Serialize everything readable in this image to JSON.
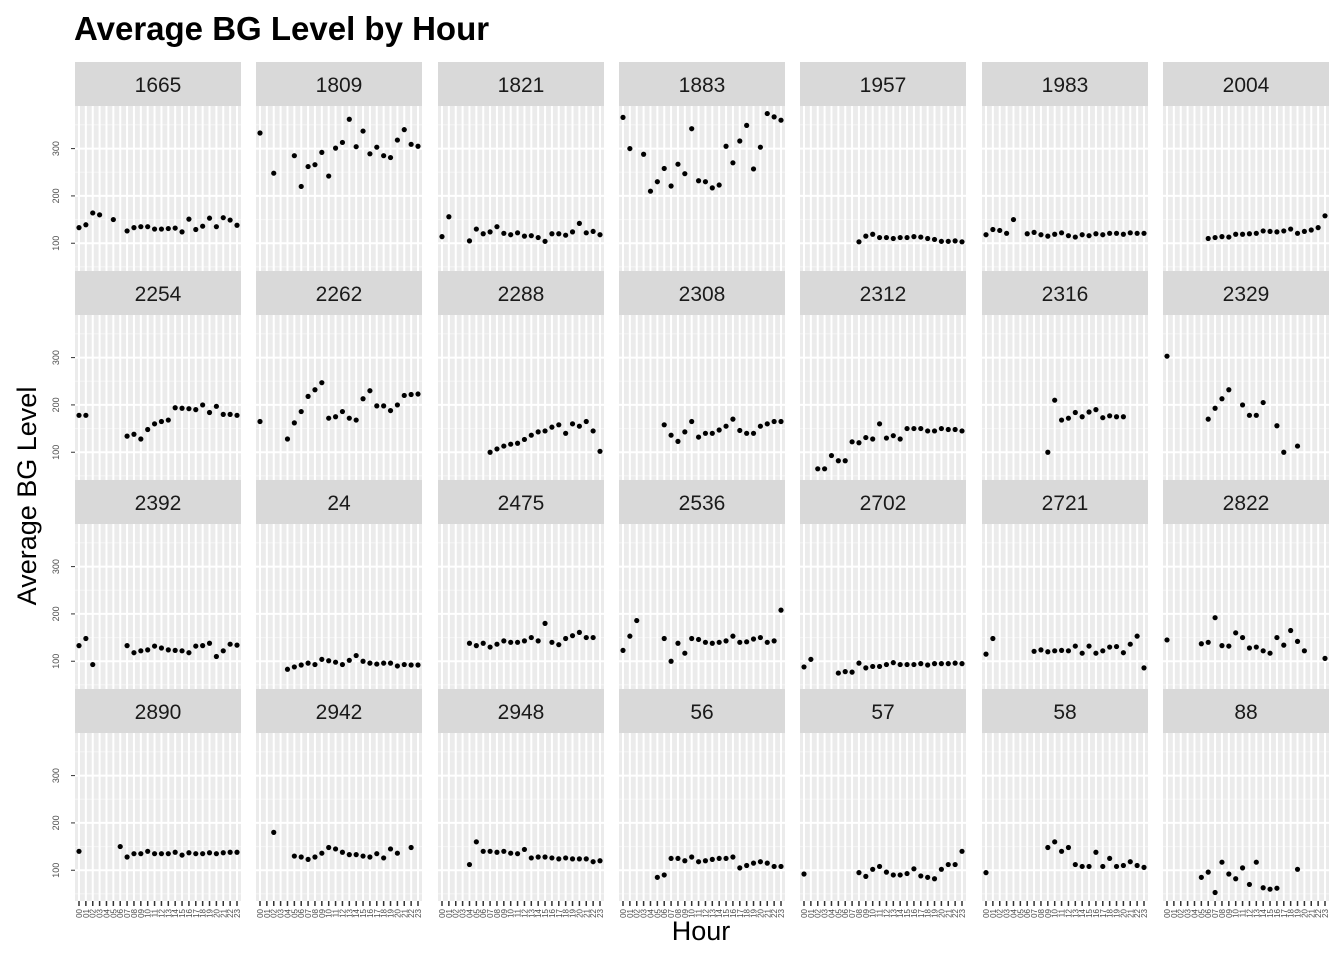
{
  "chart_data": {
    "type": "scatter",
    "title": "Average BG Level by Hour",
    "xlabel": "Hour",
    "ylabel": "Average BG Level",
    "x_categories": [
      "00",
      "01",
      "02",
      "03",
      "04",
      "05",
      "06",
      "07",
      "08",
      "09",
      "10",
      "11",
      "12",
      "13",
      "14",
      "15",
      "16",
      "17",
      "18",
      "19",
      "20",
      "21",
      "22",
      "23"
    ],
    "y_ticks": [
      100,
      200,
      300
    ],
    "y_range": [
      35,
      390
    ],
    "grid": true,
    "layout": "facet_wrap 7 columns x 4 rows, shared axes",
    "panels": [
      {
        "label": "1665",
        "x": [
          0,
          1,
          2,
          3,
          5,
          7,
          8,
          9,
          10,
          11,
          12,
          13,
          14,
          15,
          16,
          17,
          18,
          19,
          20,
          21,
          22,
          23
        ],
        "y": [
          133,
          139,
          164,
          160,
          150,
          126,
          133,
          135,
          135,
          130,
          130,
          131,
          132,
          124,
          151,
          129,
          136,
          153,
          135,
          154,
          149,
          138
        ]
      },
      {
        "label": "1809",
        "x": [
          0,
          2,
          5,
          6,
          7,
          8,
          9,
          10,
          11,
          12,
          13,
          14,
          15,
          16,
          17,
          18,
          19,
          20,
          21,
          22,
          23
        ],
        "y": [
          333,
          248,
          285,
          220,
          262,
          266,
          292,
          242,
          301,
          313,
          362,
          304,
          337,
          289,
          303,
          285,
          281,
          318,
          340,
          309,
          305
        ]
      },
      {
        "label": "1821",
        "x": [
          0,
          1,
          4,
          5,
          6,
          7,
          8,
          9,
          10,
          11,
          12,
          13,
          14,
          15,
          16,
          17,
          18,
          19,
          20,
          21,
          22,
          23
        ],
        "y": [
          114,
          156,
          105,
          130,
          120,
          124,
          135,
          121,
          118,
          122,
          115,
          116,
          112,
          104,
          120,
          120,
          117,
          124,
          142,
          122,
          125,
          118
        ]
      },
      {
        "label": "1883",
        "x": [
          0,
          1,
          3,
          4,
          5,
          6,
          7,
          8,
          9,
          10,
          11,
          12,
          13,
          14,
          15,
          16,
          17,
          18,
          19,
          20,
          21,
          22,
          23
        ],
        "y": [
          366,
          300,
          288,
          210,
          230,
          258,
          221,
          267,
          247,
          342,
          232,
          230,
          217,
          223,
          305,
          270,
          316,
          349,
          257,
          303,
          374,
          367,
          360
        ]
      },
      {
        "label": "1957",
        "x": [
          8,
          9,
          10,
          11,
          12,
          13,
          14,
          15,
          16,
          17,
          18,
          19,
          20,
          21,
          22,
          23
        ],
        "y": [
          103,
          115,
          119,
          112,
          112,
          110,
          112,
          112,
          114,
          113,
          110,
          108,
          104,
          104,
          105,
          103
        ]
      },
      {
        "label": "1983",
        "x": [
          0,
          1,
          2,
          3,
          4,
          6,
          7,
          8,
          9,
          10,
          11,
          12,
          13,
          14,
          15,
          16,
          17,
          18,
          19,
          20,
          21,
          22,
          23
        ],
        "y": [
          118,
          129,
          127,
          121,
          150,
          120,
          123,
          118,
          115,
          119,
          122,
          116,
          113,
          118,
          116,
          120,
          118,
          121,
          121,
          119,
          122,
          121,
          121
        ]
      },
      {
        "label": "2004",
        "x": [
          6,
          7,
          8,
          9,
          10,
          11,
          12,
          13,
          14,
          15,
          16,
          17,
          18,
          19,
          20,
          21,
          22,
          23
        ],
        "y": [
          110,
          112,
          114,
          113,
          119,
          119,
          120,
          121,
          126,
          125,
          124,
          126,
          130,
          121,
          125,
          128,
          133,
          158
        ]
      },
      {
        "label": "2254",
        "x": [
          0,
          1,
          7,
          8,
          9,
          10,
          11,
          12,
          13,
          14,
          15,
          16,
          17,
          18,
          19,
          20,
          21,
          22,
          23
        ],
        "y": [
          178,
          178,
          134,
          138,
          128,
          148,
          160,
          165,
          168,
          194,
          193,
          192,
          190,
          200,
          184,
          197,
          180,
          180,
          178
        ]
      },
      {
        "label": "2262",
        "x": [
          0,
          4,
          5,
          6,
          7,
          8,
          9,
          10,
          11,
          12,
          13,
          14,
          15,
          16,
          17,
          18,
          19,
          20,
          21,
          22,
          23
        ],
        "y": [
          165,
          128,
          162,
          186,
          218,
          232,
          247,
          172,
          175,
          186,
          172,
          168,
          213,
          230,
          198,
          198,
          188,
          200,
          220,
          222,
          223
        ]
      },
      {
        "label": "2288",
        "x": [
          7,
          8,
          9,
          10,
          11,
          12,
          13,
          14,
          15,
          16,
          17,
          18,
          19,
          20,
          21,
          22,
          23
        ],
        "y": [
          100,
          107,
          113,
          117,
          119,
          127,
          136,
          143,
          145,
          153,
          158,
          140,
          160,
          155,
          165,
          145,
          102
        ]
      },
      {
        "label": "2308",
        "x": [
          6,
          7,
          8,
          9,
          10,
          11,
          12,
          13,
          14,
          15,
          16,
          17,
          18,
          19,
          20,
          21,
          22,
          23
        ],
        "y": [
          158,
          136,
          123,
          143,
          165,
          132,
          140,
          140,
          147,
          155,
          170,
          146,
          140,
          140,
          155,
          160,
          165,
          165
        ]
      },
      {
        "label": "2312",
        "x": [
          2,
          3,
          4,
          5,
          6,
          7,
          8,
          9,
          10,
          11,
          12,
          13,
          14,
          15,
          16,
          17,
          18,
          19,
          20,
          21,
          22,
          23
        ],
        "y": [
          65,
          65,
          93,
          82,
          82,
          122,
          120,
          131,
          128,
          160,
          130,
          135,
          128,
          150,
          150,
          150,
          145,
          145,
          150,
          148,
          148,
          145
        ]
      },
      {
        "label": "2316",
        "x": [
          9,
          10,
          11,
          12,
          13,
          14,
          15,
          16,
          17,
          18,
          19,
          20
        ],
        "y": [
          100,
          210,
          168,
          172,
          184,
          175,
          185,
          190,
          173,
          177,
          175,
          175
        ]
      },
      {
        "label": "2329",
        "x": [
          0,
          6,
          7,
          8,
          9,
          11,
          12,
          13,
          14,
          16,
          17,
          19
        ],
        "y": [
          303,
          170,
          193,
          213,
          232,
          200,
          178,
          178,
          205,
          156,
          100,
          113
        ]
      },
      {
        "label": "2392",
        "x": [
          0,
          1,
          2,
          7,
          8,
          9,
          10,
          11,
          12,
          13,
          14,
          15,
          16,
          17,
          18,
          19,
          20,
          21,
          22,
          23
        ],
        "y": [
          133,
          148,
          93,
          133,
          118,
          122,
          124,
          132,
          128,
          124,
          123,
          122,
          118,
          132,
          133,
          138,
          110,
          122,
          136,
          134
        ]
      },
      {
        "label": "24",
        "x": [
          4,
          5,
          6,
          7,
          8,
          9,
          10,
          11,
          12,
          13,
          14,
          15,
          16,
          17,
          18,
          19,
          20,
          21,
          22,
          23
        ],
        "y": [
          83,
          88,
          92,
          96,
          93,
          104,
          101,
          98,
          93,
          102,
          112,
          100,
          96,
          94,
          96,
          96,
          90,
          93,
          92,
          92
        ]
      },
      {
        "label": "2475",
        "x": [
          4,
          5,
          6,
          7,
          8,
          9,
          10,
          11,
          12,
          13,
          14,
          15,
          16,
          17,
          18,
          19,
          20,
          21,
          22
        ],
        "y": [
          138,
          133,
          138,
          130,
          136,
          143,
          140,
          140,
          143,
          150,
          143,
          180,
          140,
          135,
          148,
          154,
          161,
          150,
          150
        ]
      },
      {
        "label": "2536",
        "x": [
          0,
          1,
          2,
          6,
          7,
          8,
          9,
          10,
          11,
          12,
          13,
          14,
          15,
          16,
          17,
          18,
          19,
          20,
          21,
          22,
          23
        ],
        "y": [
          123,
          153,
          186,
          148,
          100,
          138,
          117,
          148,
          146,
          140,
          138,
          140,
          143,
          153,
          140,
          141,
          147,
          150,
          140,
          143,
          208
        ]
      },
      {
        "label": "2702",
        "x": [
          0,
          1,
          5,
          6,
          7,
          8,
          9,
          10,
          11,
          12,
          13,
          14,
          15,
          16,
          17,
          18,
          19,
          20,
          21,
          22,
          23
        ],
        "y": [
          88,
          104,
          75,
          78,
          77,
          96,
          86,
          89,
          89,
          93,
          97,
          93,
          93,
          93,
          95,
          92,
          95,
          95,
          95,
          96,
          95
        ]
      },
      {
        "label": "2721",
        "x": [
          0,
          1,
          7,
          8,
          9,
          10,
          11,
          12,
          13,
          14,
          15,
          16,
          17,
          18,
          19,
          20,
          21,
          22,
          23
        ],
        "y": [
          115,
          148,
          121,
          124,
          120,
          122,
          123,
          122,
          132,
          117,
          132,
          117,
          122,
          130,
          131,
          118,
          136,
          153,
          86
        ]
      },
      {
        "label": "2822",
        "x": [
          0,
          5,
          6,
          7,
          8,
          9,
          10,
          11,
          12,
          13,
          14,
          15,
          16,
          17,
          18,
          19,
          20,
          23
        ],
        "y": [
          145,
          137,
          140,
          192,
          133,
          132,
          160,
          150,
          128,
          130,
          122,
          117,
          150,
          134,
          165,
          142,
          122,
          106
        ]
      },
      {
        "label": "2890",
        "x": [
          0,
          6,
          7,
          8,
          9,
          10,
          11,
          12,
          13,
          14,
          15,
          16,
          17,
          18,
          19,
          20,
          21,
          22,
          23
        ],
        "y": [
          140,
          150,
          128,
          135,
          135,
          140,
          135,
          135,
          135,
          138,
          132,
          137,
          135,
          135,
          137,
          135,
          137,
          138,
          138
        ]
      },
      {
        "label": "2942",
        "x": [
          2,
          5,
          6,
          7,
          8,
          9,
          10,
          11,
          12,
          13,
          14,
          15,
          16,
          17,
          18,
          19,
          20,
          22
        ],
        "y": [
          180,
          130,
          128,
          123,
          128,
          136,
          148,
          145,
          138,
          133,
          133,
          130,
          128,
          135,
          126,
          145,
          136,
          148
        ]
      },
      {
        "label": "2948",
        "x": [
          4,
          5,
          6,
          7,
          8,
          9,
          10,
          11,
          12,
          13,
          14,
          15,
          16,
          17,
          18,
          19,
          20,
          21,
          22,
          23
        ],
        "y": [
          112,
          160,
          140,
          140,
          138,
          140,
          136,
          135,
          144,
          126,
          128,
          128,
          126,
          124,
          126,
          124,
          124,
          124,
          118,
          120
        ]
      },
      {
        "label": "56",
        "x": [
          5,
          6,
          7,
          8,
          9,
          10,
          11,
          12,
          13,
          14,
          15,
          16,
          17,
          18,
          19,
          20,
          21,
          22,
          23
        ],
        "y": [
          85,
          90,
          125,
          125,
          120,
          128,
          118,
          120,
          123,
          125,
          125,
          128,
          105,
          110,
          115,
          118,
          115,
          108,
          108
        ]
      },
      {
        "label": "57",
        "x": [
          0,
          8,
          9,
          10,
          11,
          12,
          13,
          14,
          15,
          16,
          17,
          18,
          19,
          20,
          21,
          22,
          23
        ],
        "y": [
          92,
          95,
          87,
          102,
          108,
          96,
          90,
          90,
          93,
          103,
          88,
          85,
          82,
          102,
          112,
          112,
          140
        ]
      },
      {
        "label": "58",
        "x": [
          0,
          9,
          10,
          11,
          12,
          13,
          14,
          15,
          16,
          17,
          18,
          19,
          20,
          21,
          22,
          23
        ],
        "y": [
          95,
          148,
          160,
          140,
          148,
          112,
          108,
          108,
          138,
          108,
          125,
          108,
          110,
          118,
          110,
          106
        ]
      },
      {
        "label": "88",
        "x": [
          5,
          6,
          7,
          8,
          9,
          10,
          11,
          12,
          13,
          14,
          15,
          16,
          19
        ],
        "y": [
          85,
          96,
          53,
          117,
          92,
          82,
          105,
          70,
          117,
          63,
          60,
          62,
          102
        ]
      }
    ]
  }
}
